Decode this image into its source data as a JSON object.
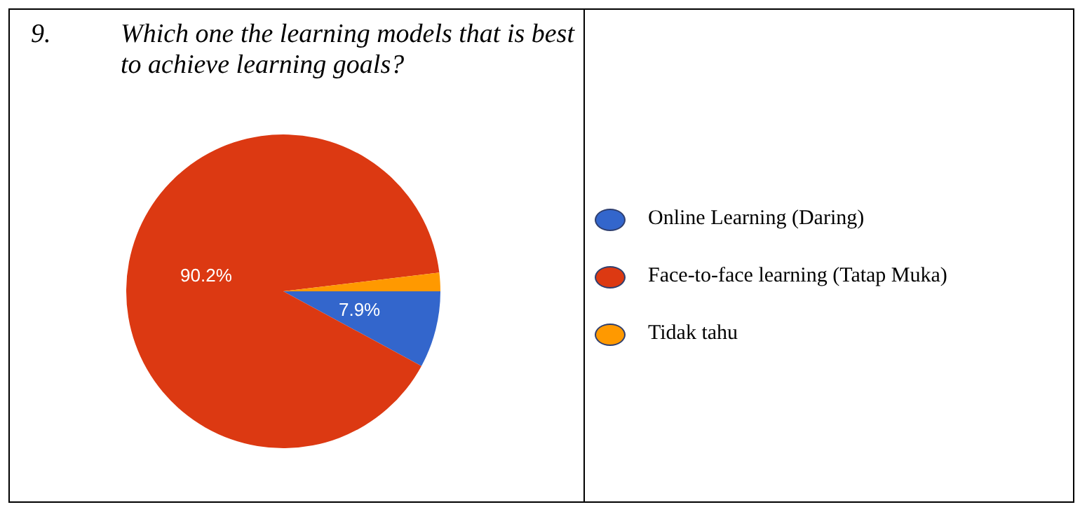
{
  "chart_data": {
    "type": "pie",
    "title": "Which one the learning models that is best to achieve learning goals?",
    "annotations": [
      "9."
    ],
    "categories": [
      "Online Learning (Daring)",
      "Face-to-face learning (Tatap Muka)",
      "Tidak tahu"
    ],
    "values": [
      7.9,
      90.2,
      1.9
    ],
    "value_labels": [
      "7.9%",
      "90.2%",
      null
    ],
    "colors": [
      "#3366cc",
      "#dc3912",
      "#ff9900"
    ],
    "legend": "right"
  }
}
